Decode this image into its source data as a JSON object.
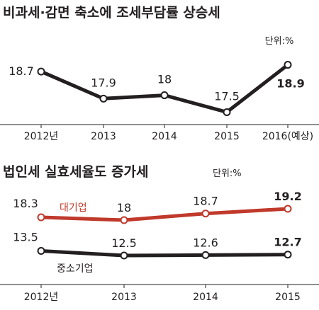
{
  "chart_data": [
    {
      "type": "line",
      "title": "비과세·감면 축소에 조세부담률 상승세",
      "unit": "단위:%",
      "categories": [
        "2012년",
        "2013",
        "2014",
        "2015",
        "2016(예상)"
      ],
      "series": [
        {
          "values": [
            18.7,
            17.9,
            18,
            17.5,
            18.9
          ],
          "labels": [
            "18.7",
            "17.9",
            "18",
            "17.5",
            "18.9"
          ],
          "color": "#231f20"
        }
      ],
      "ylim": [
        17.3,
        19.1
      ]
    },
    {
      "type": "line",
      "title": "법인세 실효세율도 증가세",
      "unit": "단위:%",
      "categories": [
        "2012년",
        "2013",
        "2014",
        "2015"
      ],
      "series": [
        {
          "name": "대기업",
          "values": [
            18.3,
            18,
            18.7,
            19.2
          ],
          "labels": [
            "18.3",
            "18",
            "18.7",
            "19.2"
          ],
          "color": "#c0392b"
        },
        {
          "name": "중소기업",
          "values": [
            13.5,
            12.5,
            12.6,
            12.7
          ],
          "labels": [
            "13.5",
            "12.5",
            "12.6",
            "12.7"
          ],
          "color": "#231f20"
        }
      ]
    }
  ]
}
